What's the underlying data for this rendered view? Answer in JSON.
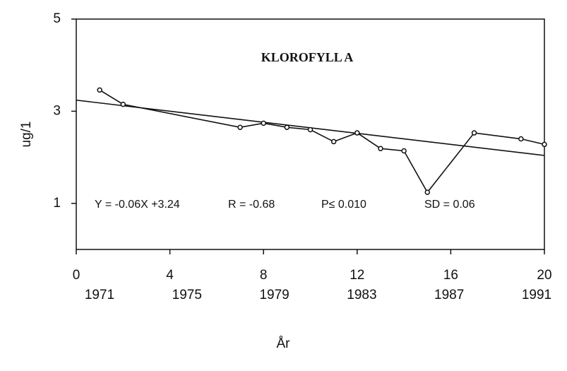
{
  "chart_data": {
    "type": "line",
    "title": "KLOROFYLL A",
    "y_label": "ug/1",
    "x_label": "År",
    "x": [
      1,
      2,
      7,
      8,
      9,
      10,
      11,
      12,
      13,
      14,
      15,
      17,
      19,
      20
    ],
    "values": [
      3.46,
      3.15,
      2.65,
      2.74,
      2.65,
      2.6,
      2.34,
      2.53,
      2.19,
      2.14,
      1.24,
      2.53,
      2.4,
      2.28
    ],
    "color": "#111",
    "regression": {
      "slope": -0.06,
      "intercept": 3.24
    },
    "annotations": [
      "Y = -0.06X +3.24",
      "R = -0.68",
      "P≤ 0.010",
      "SD = 0.06"
    ],
    "xlim": [
      0,
      20
    ],
    "xticks": [
      0,
      4,
      8,
      12,
      16,
      20
    ],
    "ylim": [
      0,
      5
    ],
    "yticks": [
      1,
      3,
      5
    ],
    "year_labels": [
      1971,
      1975,
      1979,
      1983,
      1987,
      1991
    ]
  }
}
